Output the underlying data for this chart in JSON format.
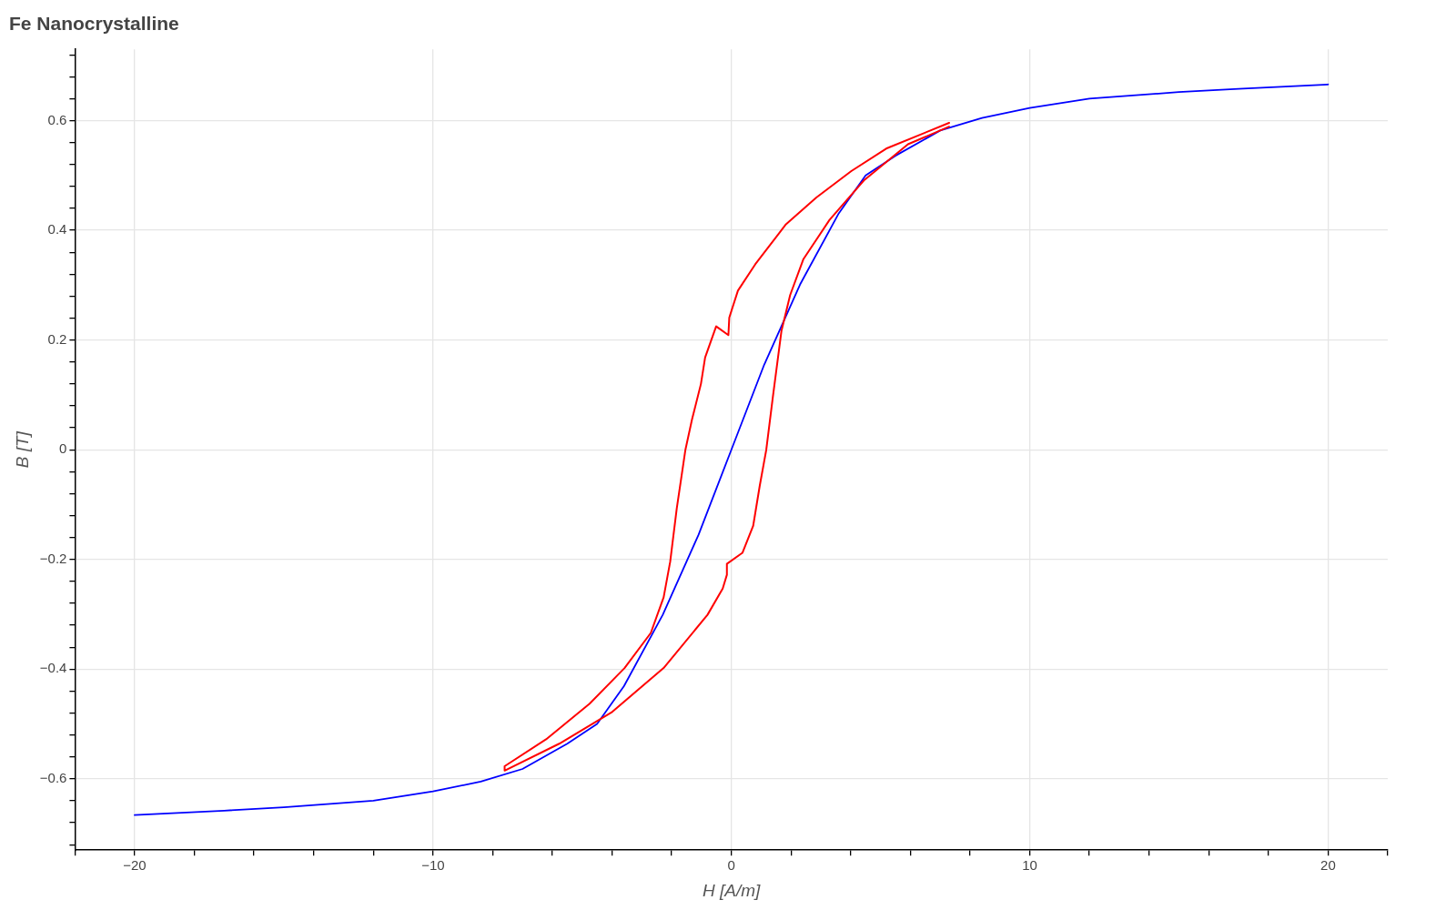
{
  "chart_data": {
    "type": "line",
    "title": "Fe Nanocrystalline",
    "xlabel": "H [A/m]",
    "ylabel": "B [T]",
    "xlim": [
      -22,
      22
    ],
    "ylim": [
      -0.73,
      0.73
    ],
    "xticks": [
      {
        "value": -22,
        "label": null
      },
      {
        "value": -20,
        "label": "−20"
      },
      {
        "value": -18,
        "label": null
      },
      {
        "value": -16,
        "label": null
      },
      {
        "value": -14,
        "label": null
      },
      {
        "value": -12,
        "label": null
      },
      {
        "value": -10,
        "label": "−10"
      },
      {
        "value": -8,
        "label": null
      },
      {
        "value": -6,
        "label": null
      },
      {
        "value": -4,
        "label": null
      },
      {
        "value": -2,
        "label": null
      },
      0,
      {
        "value": 2,
        "label": null
      },
      {
        "value": 4,
        "label": null
      },
      {
        "value": 6,
        "label": null
      },
      {
        "value": 8,
        "label": null
      },
      10,
      {
        "value": 12,
        "label": null
      },
      {
        "value": 14,
        "label": null
      },
      {
        "value": 16,
        "label": null
      },
      {
        "value": 18,
        "label": null
      },
      20,
      {
        "value": 22,
        "label": null
      }
    ],
    "yticks": [
      {
        "value": -0.72,
        "label": null
      },
      {
        "value": -0.68,
        "label": null
      },
      {
        "value": -0.64,
        "label": null
      },
      {
        "value": -0.6,
        "label": "−0.6"
      },
      {
        "value": -0.56,
        "label": null
      },
      {
        "value": -0.52,
        "label": null
      },
      {
        "value": -0.48,
        "label": null
      },
      {
        "value": -0.44,
        "label": null
      },
      {
        "value": -0.4,
        "label": "−0.4"
      },
      {
        "value": -0.36,
        "label": null
      },
      {
        "value": -0.32,
        "label": null
      },
      {
        "value": -0.28,
        "label": null
      },
      {
        "value": -0.24,
        "label": null
      },
      {
        "value": -0.2,
        "label": "−0.2"
      },
      {
        "value": -0.16,
        "label": null
      },
      {
        "value": -0.12,
        "label": null
      },
      {
        "value": -0.08,
        "label": null
      },
      {
        "value": -0.04,
        "label": null
      },
      0,
      {
        "value": 0.04,
        "label": null
      },
      {
        "value": 0.08,
        "label": null
      },
      {
        "value": 0.12,
        "label": null
      },
      {
        "value": 0.16,
        "label": null
      },
      0.2,
      {
        "value": 0.24,
        "label": null
      },
      {
        "value": 0.28,
        "label": null
      },
      {
        "value": 0.32,
        "label": null
      },
      {
        "value": 0.36,
        "label": null
      },
      0.4,
      {
        "value": 0.44,
        "label": null
      },
      {
        "value": 0.48,
        "label": null
      },
      {
        "value": 0.52,
        "label": null
      },
      {
        "value": 0.56,
        "label": null
      },
      0.6,
      {
        "value": 0.64,
        "label": null
      },
      {
        "value": 0.68,
        "label": null
      },
      {
        "value": 0.72,
        "label": null
      }
    ],
    "grid": true,
    "legend": false,
    "marker": "none",
    "line_style": "solid",
    "series": [
      {
        "color": "#ff0000",
        "x": [
          7.3,
          5.19,
          4.02,
          2.85,
          1.83,
          0.8,
          0.22,
          -0.07,
          -0.1,
          -0.51,
          -0.88,
          -1.02,
          -1.32,
          -1.54,
          -1.83,
          -2.05,
          -2.27,
          -2.7,
          -3.58,
          -4.75,
          -6.21,
          -7.6,
          -7.6,
          -5.77,
          -4.02,
          -2.27,
          -0.8,
          -0.29,
          -0.15,
          -0.15,
          0.37,
          0.73,
          0.95,
          1.17,
          1.39,
          1.68,
          1.97,
          2.41,
          3.29,
          4.46,
          5.92,
          7.3
        ],
        "values": [
          0.596,
          0.549,
          0.508,
          0.46,
          0.411,
          0.338,
          0.29,
          0.241,
          0.209,
          0.225,
          0.168,
          0.12,
          0.055,
          0,
          -0.107,
          -0.204,
          -0.269,
          -0.334,
          -0.398,
          -0.463,
          -0.528,
          -0.577,
          -0.585,
          -0.536,
          -0.479,
          -0.398,
          -0.301,
          -0.253,
          -0.228,
          -0.208,
          -0.188,
          -0.139,
          -0.066,
          0,
          0.096,
          0.217,
          0.282,
          0.347,
          0.419,
          0.492,
          0.557,
          0.589
        ]
      },
      {
        "color": "#0000ff",
        "x": [
          -20,
          -17,
          -15,
          -12,
          -10,
          -8.4,
          -7,
          -5.5,
          -4.5,
          -3.6,
          -2.3,
          -1.1,
          0,
          1.1,
          2.3,
          3.6,
          4.5,
          5.5,
          7,
          8.4,
          10,
          12,
          15,
          17,
          20
        ],
        "values": [
          -0.666,
          -0.658,
          -0.652,
          -0.64,
          -0.623,
          -0.605,
          -0.582,
          -0.536,
          -0.5,
          -0.431,
          -0.301,
          -0.155,
          0,
          0.155,
          0.301,
          0.431,
          0.5,
          0.536,
          0.582,
          0.605,
          0.623,
          0.64,
          0.652,
          0.658,
          0.666
        ]
      }
    ]
  }
}
